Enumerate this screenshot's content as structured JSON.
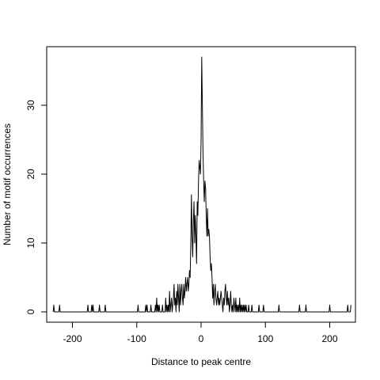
{
  "chart_data": {
    "type": "line",
    "title": "",
    "xlabel": "Distance to peak centre",
    "ylabel": "Number of motif occurrences",
    "xlim": [
      -240,
      240
    ],
    "ylim": [
      -1.5,
      38.5
    ],
    "xticks": [
      -200,
      -100,
      0,
      100,
      200
    ],
    "yticks": [
      0,
      10,
      20,
      30
    ],
    "grid": false,
    "legend": "none",
    "line_color": "#000000",
    "series": [
      {
        "points": [
          [
            -230,
            0
          ],
          [
            -229,
            1
          ],
          [
            -228,
            0
          ],
          [
            -221,
            0
          ],
          [
            -220,
            1
          ],
          [
            -219,
            0
          ],
          [
            -177,
            0
          ],
          [
            -176,
            1
          ],
          [
            -175,
            0
          ],
          [
            -171,
            0
          ],
          [
            -170,
            1
          ],
          [
            -169,
            0
          ],
          [
            -168,
            1
          ],
          [
            -167,
            0
          ],
          [
            -159,
            0
          ],
          [
            -158,
            1
          ],
          [
            -157,
            0
          ],
          [
            -150,
            0
          ],
          [
            -149,
            1
          ],
          [
            -148,
            0
          ],
          [
            -99,
            0
          ],
          [
            -98,
            1
          ],
          [
            -97,
            0
          ],
          [
            -87,
            0
          ],
          [
            -86,
            1
          ],
          [
            -85,
            0
          ],
          [
            -84,
            1
          ],
          [
            -83,
            0
          ],
          [
            -79,
            0
          ],
          [
            -78,
            1
          ],
          [
            -77,
            0
          ],
          [
            -72,
            0
          ],
          [
            -71,
            1
          ],
          [
            -70,
            0
          ],
          [
            -69,
            2
          ],
          [
            -68,
            0
          ],
          [
            -67,
            1
          ],
          [
            -66,
            0
          ],
          [
            -65,
            1
          ],
          [
            -64,
            0
          ],
          [
            -61,
            0
          ],
          [
            -60,
            1
          ],
          [
            -59,
            0
          ],
          [
            -56,
            0
          ],
          [
            -55,
            2
          ],
          [
            -54,
            0
          ],
          [
            -53,
            1
          ],
          [
            -52,
            0
          ],
          [
            -51,
            1
          ],
          [
            -50,
            0
          ],
          [
            -49,
            3
          ],
          [
            -48,
            0
          ],
          [
            -47,
            1
          ],
          [
            -46,
            2
          ],
          [
            -45,
            0
          ],
          [
            -44,
            1
          ],
          [
            -43,
            2
          ],
          [
            -42,
            4
          ],
          [
            -41,
            1
          ],
          [
            -40,
            2
          ],
          [
            -39,
            0
          ],
          [
            -38,
            3
          ],
          [
            -37,
            1
          ],
          [
            -36,
            4
          ],
          [
            -35,
            2
          ],
          [
            -34,
            0
          ],
          [
            -33,
            4
          ],
          [
            -32,
            1
          ],
          [
            -31,
            3
          ],
          [
            -30,
            4
          ],
          [
            -29,
            2
          ],
          [
            -28,
            1
          ],
          [
            -27,
            4
          ],
          [
            -26,
            2
          ],
          [
            -25,
            3
          ],
          [
            -24,
            5
          ],
          [
            -23,
            3
          ],
          [
            -22,
            4
          ],
          [
            -21,
            5
          ],
          [
            -20,
            3
          ],
          [
            -19,
            4
          ],
          [
            -18,
            6
          ],
          [
            -17,
            5
          ],
          [
            -16,
            10
          ],
          [
            -15,
            17
          ],
          [
            -14,
            11
          ],
          [
            -13,
            8
          ],
          [
            -12,
            13
          ],
          [
            -11,
            16
          ],
          [
            -10,
            10
          ],
          [
            -9,
            14
          ],
          [
            -8,
            11
          ],
          [
            -7,
            7
          ],
          [
            -6,
            16
          ],
          [
            -5,
            14
          ],
          [
            -4,
            19
          ],
          [
            -3,
            22
          ],
          [
            -2,
            21
          ],
          [
            -1,
            20
          ],
          [
            0,
            25
          ],
          [
            1,
            37
          ],
          [
            2,
            30
          ],
          [
            3,
            23
          ],
          [
            4,
            19
          ],
          [
            5,
            16
          ],
          [
            6,
            19
          ],
          [
            7,
            18
          ],
          [
            8,
            14
          ],
          [
            9,
            11
          ],
          [
            10,
            15
          ],
          [
            11,
            11
          ],
          [
            12,
            12
          ],
          [
            13,
            11
          ],
          [
            14,
            8
          ],
          [
            15,
            6
          ],
          [
            16,
            7
          ],
          [
            17,
            5
          ],
          [
            18,
            2
          ],
          [
            19,
            4
          ],
          [
            20,
            1
          ],
          [
            21,
            3
          ],
          [
            22,
            4
          ],
          [
            23,
            2
          ],
          [
            24,
            1
          ],
          [
            25,
            2
          ],
          [
            26,
            3
          ],
          [
            27,
            1
          ],
          [
            28,
            2
          ],
          [
            29,
            1
          ],
          [
            30,
            2
          ],
          [
            31,
            3
          ],
          [
            32,
            2
          ],
          [
            33,
            1
          ],
          [
            34,
            0
          ],
          [
            35,
            2
          ],
          [
            36,
            1
          ],
          [
            37,
            3
          ],
          [
            38,
            4
          ],
          [
            39,
            2
          ],
          [
            40,
            1
          ],
          [
            41,
            3
          ],
          [
            42,
            1
          ],
          [
            43,
            2
          ],
          [
            44,
            0
          ],
          [
            45,
            1
          ],
          [
            46,
            3
          ],
          [
            47,
            1
          ],
          [
            48,
            0
          ],
          [
            49,
            1
          ],
          [
            50,
            0
          ],
          [
            51,
            2
          ],
          [
            52,
            1
          ],
          [
            53,
            0
          ],
          [
            54,
            2
          ],
          [
            55,
            0
          ],
          [
            56,
            1
          ],
          [
            57,
            0
          ],
          [
            58,
            1
          ],
          [
            59,
            0
          ],
          [
            60,
            2
          ],
          [
            61,
            0
          ],
          [
            62,
            1
          ],
          [
            63,
            0
          ],
          [
            64,
            1
          ],
          [
            65,
            0
          ],
          [
            66,
            1
          ],
          [
            67,
            0
          ],
          [
            68,
            1
          ],
          [
            69,
            0
          ],
          [
            70,
            1
          ],
          [
            71,
            0
          ],
          [
            73,
            0
          ],
          [
            74,
            1
          ],
          [
            75,
            0
          ],
          [
            78,
            0
          ],
          [
            79,
            1
          ],
          [
            80,
            0
          ],
          [
            89,
            0
          ],
          [
            90,
            1
          ],
          [
            91,
            0
          ],
          [
            96,
            0
          ],
          [
            97,
            1
          ],
          [
            98,
            0
          ],
          [
            120,
            0
          ],
          [
            121,
            1
          ],
          [
            122,
            0
          ],
          [
            152,
            0
          ],
          [
            153,
            1
          ],
          [
            154,
            0
          ],
          [
            162,
            0
          ],
          [
            163,
            1
          ],
          [
            164,
            0
          ],
          [
            199,
            0
          ],
          [
            200,
            1
          ],
          [
            201,
            0
          ],
          [
            227,
            0
          ],
          [
            228,
            1
          ],
          [
            229,
            0
          ],
          [
            232,
            0
          ],
          [
            233,
            1
          ]
        ]
      }
    ]
  }
}
